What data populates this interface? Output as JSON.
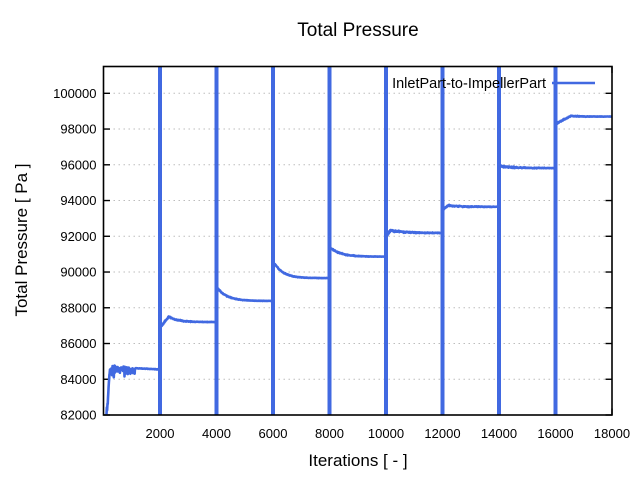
{
  "title": "Total Pressure",
  "axes": {
    "xlabel": "Iterations [ - ]",
    "ylabel": "Total Pressure [ Pa ]"
  },
  "legend": {
    "entries": [
      {
        "label": "InletPart-to-ImpellerPart",
        "color": "#4169e1"
      }
    ],
    "position": "top-right-inside"
  },
  "colors": {
    "line": "#4169e1",
    "grid": "#bdbdbd",
    "axis": "#000000",
    "background": "#ffffff",
    "text": "#000000"
  },
  "chart_data": {
    "type": "line",
    "title": "Total Pressure",
    "xlabel": "Iterations [ - ]",
    "ylabel": "Total Pressure [ Pa ]",
    "xlim": [
      0,
      18000
    ],
    "ylim": [
      82000,
      101500
    ],
    "xticks": [
      2000,
      4000,
      6000,
      8000,
      10000,
      12000,
      14000,
      16000,
      18000
    ],
    "yticks": [
      82000,
      84000,
      86000,
      88000,
      90000,
      92000,
      94000,
      96000,
      98000,
      100000
    ],
    "grid": "horizontal dotted gridlines at each y tick",
    "legend_position": "top-right inside plot",
    "series": [
      {
        "name": "InletPart-to-ImpellerPart",
        "color": "#4169e1",
        "pattern": "staircase: a full-height vertical spike at every 2000 iterations, each followed by a short transient that settles onto a higher flat plateau",
        "spikes_x": [
          2000,
          4000,
          6000,
          8000,
          10000,
          12000,
          14000,
          16000
        ],
        "spike_span": [
          82000,
          101500
        ],
        "segments": [
          {
            "x_start": 105,
            "x_end": 2000,
            "type": "startup",
            "ramp_to": 84250,
            "band_center": 84400,
            "band_min": 83580,
            "band_max": 85160,
            "band_until": 1120,
            "plateau": 84570
          },
          {
            "x_start": 2000,
            "x_end": 4000,
            "start": 86900,
            "peak": 87500,
            "peak_at": 2320,
            "plateau": 87200,
            "settle": 2950,
            "noise": 60
          },
          {
            "x_start": 4000,
            "x_end": 6000,
            "start": 89060,
            "peak": 89060,
            "peak_at": 4060,
            "plateau": 88380,
            "settle": 4750,
            "noise": 50
          },
          {
            "x_start": 6000,
            "x_end": 8000,
            "start": 90460,
            "peak": 90460,
            "peak_at": 6060,
            "plateau": 89660,
            "settle": 6700,
            "noise": 55
          },
          {
            "x_start": 8000,
            "x_end": 10000,
            "start": 91320,
            "peak": 91320,
            "peak_at": 8060,
            "plateau": 90860,
            "settle": 8800,
            "noise": 55
          },
          {
            "x_start": 10000,
            "x_end": 12000,
            "start": 91980,
            "peak": 92330,
            "peak_at": 10150,
            "plateau": 92180,
            "settle": 11200,
            "noise": 90
          },
          {
            "x_start": 12000,
            "x_end": 14000,
            "start": 93480,
            "peak": 93720,
            "peak_at": 12200,
            "plateau": 93650,
            "settle": 13000,
            "noise": 70
          },
          {
            "x_start": 14000,
            "x_end": 16000,
            "start": 95930,
            "peak": 95930,
            "peak_at": 14060,
            "plateau": 95815,
            "settle": 14900,
            "noise": 85
          },
          {
            "x_start": 16000,
            "x_end": 18000,
            "start": 98280,
            "peak": 98740,
            "peak_at": 16550,
            "plateau": 98700,
            "settle": 16900,
            "noise": 55
          }
        ]
      }
    ]
  }
}
